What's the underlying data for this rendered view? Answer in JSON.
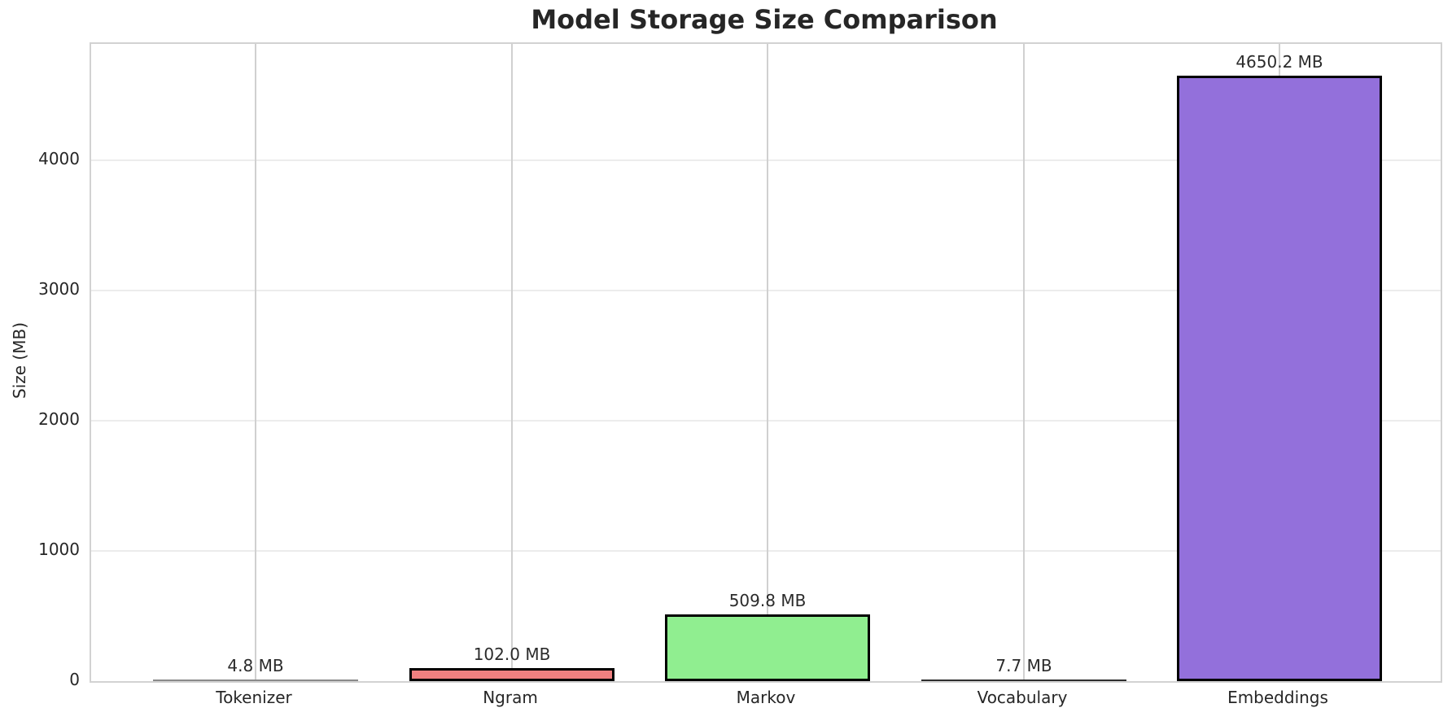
{
  "chart_data": {
    "type": "bar",
    "title": "Model Storage Size Comparison",
    "xlabel": "",
    "ylabel": "Size (MB)",
    "categories": [
      "Tokenizer",
      "Ngram",
      "Markov",
      "Vocabulary",
      "Embeddings"
    ],
    "values": [
      4.8,
      102.0,
      509.8,
      7.7,
      4650.2
    ],
    "bar_labels": [
      "4.8 MB",
      "102.0 MB",
      "509.8 MB",
      "7.7 MB",
      "4650.2 MB"
    ],
    "bar_fill_colors": [
      null,
      "#F08080",
      "#90EE90",
      null,
      "#9370DB"
    ],
    "bar_edge_color": "#000000",
    "yticks": [
      0,
      1000,
      2000,
      3000,
      4000
    ],
    "ytick_labels": [
      "0",
      "1000",
      "2000",
      "3000",
      "4000"
    ],
    "ylim": [
      0,
      4895
    ],
    "grid": "both",
    "legend": "none",
    "styles": {
      "background": "#ffffff",
      "text_color": "#262626",
      "spine_color": "#d2d2d2",
      "grid_color_horizontal": "#ececec",
      "grid_color_vertical": "#d0d0d0",
      "tiny_bar_line_color_light": "#8a8a8a",
      "tiny_bar_line_color_dark": "#2e2e2e"
    }
  }
}
